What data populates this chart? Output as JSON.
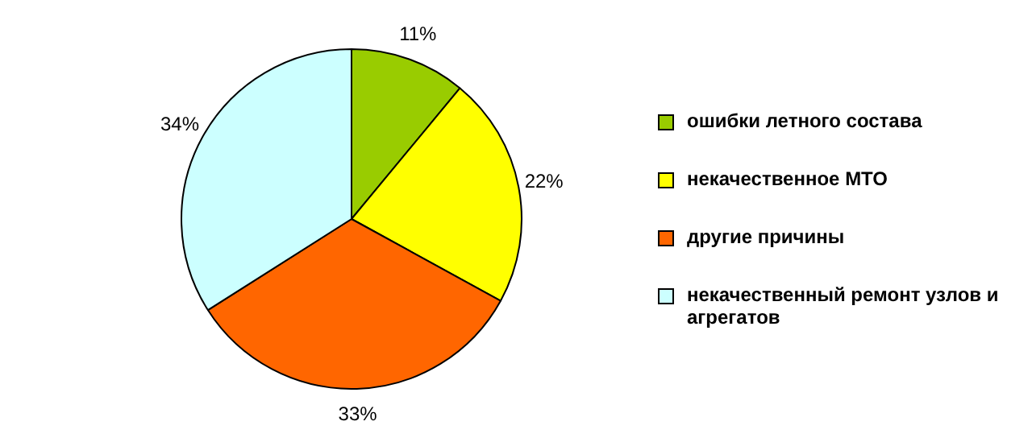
{
  "chart_data": {
    "type": "pie",
    "categories": [
      "ошибки летного состава",
      "некачественное МТО",
      "другие причины",
      "некачественный ремонт узлов и агрегатов"
    ],
    "values": [
      11,
      22,
      33,
      34
    ],
    "colors": [
      "#99cc00",
      "#ffff00",
      "#ff6600",
      "#ccffff"
    ],
    "value_labels": [
      "11%",
      "22%",
      "33%",
      "34%"
    ],
    "legend": "right"
  }
}
